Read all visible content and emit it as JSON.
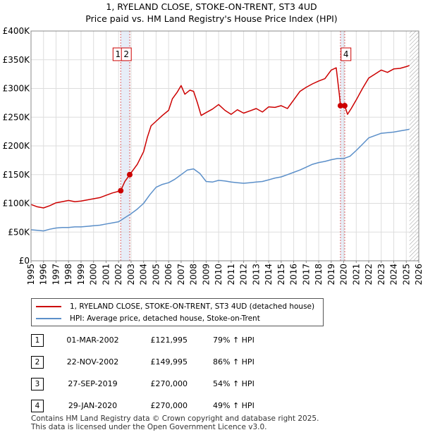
{
  "title": "1, RYELAND CLOSE, STOKE-ON-TRENT, ST3 4UD",
  "subtitle": "Price paid vs. HM Land Registry's House Price Index (HPI)",
  "chart_data": {
    "type": "line",
    "x_range": [
      1995,
      2026
    ],
    "ylim": [
      0,
      400000
    ],
    "y_ticks": [
      0,
      50000,
      100000,
      150000,
      200000,
      250000,
      300000,
      350000,
      400000
    ],
    "y_tick_labels": [
      "£0",
      "£50K",
      "£100K",
      "£150K",
      "£200K",
      "£250K",
      "£300K",
      "£350K",
      "£400K"
    ],
    "x_ticks": [
      1995,
      1996,
      1997,
      1998,
      1999,
      2000,
      2001,
      2002,
      2003,
      2004,
      2005,
      2006,
      2007,
      2008,
      2009,
      2010,
      2011,
      2012,
      2013,
      2014,
      2015,
      2016,
      2017,
      2018,
      2019,
      2020,
      2021,
      2022,
      2023,
      2024,
      2025,
      2026
    ],
    "grid": true,
    "series": [
      {
        "name": "1, RYELAND CLOSE, STOKE-ON-TRENT, ST3 4UD (detached house)",
        "color": "#cc0000",
        "points": [
          [
            1995.0,
            98000
          ],
          [
            1995.5,
            94000
          ],
          [
            1996.0,
            92000
          ],
          [
            1996.5,
            96000
          ],
          [
            1997.0,
            101000
          ],
          [
            1997.5,
            103000
          ],
          [
            1998.0,
            105000
          ],
          [
            1998.5,
            103000
          ],
          [
            1999.0,
            104000
          ],
          [
            1999.5,
            106000
          ],
          [
            2000.0,
            108000
          ],
          [
            2000.5,
            110000
          ],
          [
            2001.0,
            114000
          ],
          [
            2001.5,
            118000
          ],
          [
            2002.17,
            121995
          ],
          [
            2002.5,
            138000
          ],
          [
            2002.89,
            149995
          ],
          [
            2003.5,
            168000
          ],
          [
            2004.0,
            190000
          ],
          [
            2004.3,
            215000
          ],
          [
            2004.6,
            235000
          ],
          [
            2005.0,
            243000
          ],
          [
            2005.5,
            253000
          ],
          [
            2006.0,
            262000
          ],
          [
            2006.3,
            282000
          ],
          [
            2006.7,
            294000
          ],
          [
            2007.0,
            305000
          ],
          [
            2007.3,
            290000
          ],
          [
            2007.7,
            297000
          ],
          [
            2008.0,
            295000
          ],
          [
            2008.3,
            275000
          ],
          [
            2008.6,
            253000
          ],
          [
            2009.0,
            258000
          ],
          [
            2009.5,
            264000
          ],
          [
            2010.0,
            272000
          ],
          [
            2010.5,
            262000
          ],
          [
            2011.0,
            255000
          ],
          [
            2011.5,
            263000
          ],
          [
            2012.0,
            257000
          ],
          [
            2012.5,
            261000
          ],
          [
            2013.0,
            265000
          ],
          [
            2013.5,
            259000
          ],
          [
            2014.0,
            268000
          ],
          [
            2014.5,
            267000
          ],
          [
            2015.0,
            270000
          ],
          [
            2015.5,
            265000
          ],
          [
            2016.0,
            280000
          ],
          [
            2016.5,
            295000
          ],
          [
            2017.0,
            302000
          ],
          [
            2017.5,
            308000
          ],
          [
            2018.0,
            313000
          ],
          [
            2018.5,
            317000
          ],
          [
            2019.0,
            332000
          ],
          [
            2019.4,
            336000
          ],
          [
            2019.65,
            290000
          ],
          [
            2019.74,
            270000
          ],
          [
            2019.9,
            268000
          ],
          [
            2020.08,
            270000
          ],
          [
            2020.3,
            255000
          ],
          [
            2020.6,
            265000
          ],
          [
            2021.0,
            280000
          ],
          [
            2021.5,
            300000
          ],
          [
            2022.0,
            318000
          ],
          [
            2022.5,
            325000
          ],
          [
            2023.0,
            332000
          ],
          [
            2023.5,
            328000
          ],
          [
            2024.0,
            334000
          ],
          [
            2024.5,
            335000
          ],
          [
            2025.0,
            338000
          ],
          [
            2025.25,
            340000
          ]
        ]
      },
      {
        "name": "HPI: Average price, detached house, Stoke-on-Trent",
        "color": "#5b8fc9",
        "points": [
          [
            1995.0,
            54000
          ],
          [
            1995.5,
            53000
          ],
          [
            1996.0,
            52000
          ],
          [
            1996.5,
            55000
          ],
          [
            1997.0,
            57000
          ],
          [
            1997.5,
            58000
          ],
          [
            1998.0,
            58000
          ],
          [
            1998.5,
            59000
          ],
          [
            1999.0,
            59000
          ],
          [
            1999.5,
            60000
          ],
          [
            2000.0,
            61000
          ],
          [
            2000.5,
            62000
          ],
          [
            2001.0,
            64000
          ],
          [
            2001.5,
            66000
          ],
          [
            2002.0,
            68000
          ],
          [
            2002.5,
            75000
          ],
          [
            2003.0,
            82000
          ],
          [
            2003.5,
            90000
          ],
          [
            2004.0,
            100000
          ],
          [
            2004.5,
            115000
          ],
          [
            2005.0,
            128000
          ],
          [
            2005.5,
            133000
          ],
          [
            2006.0,
            136000
          ],
          [
            2006.5,
            142000
          ],
          [
            2007.0,
            150000
          ],
          [
            2007.5,
            158000
          ],
          [
            2008.0,
            160000
          ],
          [
            2008.5,
            152000
          ],
          [
            2009.0,
            138000
          ],
          [
            2009.5,
            137000
          ],
          [
            2010.0,
            140000
          ],
          [
            2010.5,
            139000
          ],
          [
            2011.0,
            137000
          ],
          [
            2011.5,
            136000
          ],
          [
            2012.0,
            135000
          ],
          [
            2012.5,
            136000
          ],
          [
            2013.0,
            137000
          ],
          [
            2013.5,
            138000
          ],
          [
            2014.0,
            141000
          ],
          [
            2014.5,
            144000
          ],
          [
            2015.0,
            146000
          ],
          [
            2015.5,
            150000
          ],
          [
            2016.0,
            154000
          ],
          [
            2016.5,
            158000
          ],
          [
            2017.0,
            163000
          ],
          [
            2017.5,
            168000
          ],
          [
            2018.0,
            171000
          ],
          [
            2018.5,
            173000
          ],
          [
            2019.0,
            176000
          ],
          [
            2019.5,
            178000
          ],
          [
            2020.0,
            178000
          ],
          [
            2020.5,
            182000
          ],
          [
            2021.0,
            192000
          ],
          [
            2021.5,
            203000
          ],
          [
            2022.0,
            214000
          ],
          [
            2022.5,
            218000
          ],
          [
            2023.0,
            222000
          ],
          [
            2023.5,
            223000
          ],
          [
            2024.0,
            224000
          ],
          [
            2024.5,
            226000
          ],
          [
            2025.0,
            228000
          ],
          [
            2025.25,
            229000
          ]
        ]
      }
    ],
    "sales": [
      {
        "id": "1",
        "x": 2002.17,
        "value": 121995
      },
      {
        "id": "2",
        "x": 2002.89,
        "value": 149995
      },
      {
        "id": "3",
        "x": 2019.74,
        "value": 270000
      },
      {
        "id": "4",
        "x": 2020.08,
        "value": 270000
      }
    ],
    "shaded_range": [
      2002.17,
      2002.89
    ],
    "shaded_range_2": [
      2019.74,
      2020.08
    ],
    "future_hatch_from": 2025.25
  },
  "marker_labels": [
    {
      "label": "1",
      "x": 2001.95
    },
    {
      "label": "2",
      "x": 2002.62
    },
    {
      "label": "4",
      "x": 2020.18
    }
  ],
  "legend": [
    {
      "label": "1, RYELAND CLOSE, STOKE-ON-TRENT, ST3 4UD (detached house)",
      "color": "#cc0000"
    },
    {
      "label": "HPI: Average price, detached house, Stoke-on-Trent",
      "color": "#5b8fc9"
    }
  ],
  "transactions": [
    {
      "num": "1",
      "date": "01-MAR-2002",
      "price": "£121,995",
      "hpi": "79% ↑ HPI"
    },
    {
      "num": "2",
      "date": "22-NOV-2002",
      "price": "£149,995",
      "hpi": "86% ↑ HPI"
    },
    {
      "num": "3",
      "date": "27-SEP-2019",
      "price": "£270,000",
      "hpi": "54% ↑ HPI"
    },
    {
      "num": "4",
      "date": "29-JAN-2020",
      "price": "£270,000",
      "hpi": "49% ↑ HPI"
    }
  ],
  "footer": {
    "line1": "Contains HM Land Registry data © Crown copyright and database right 2025.",
    "line2": "This data is licensed under the Open Government Licence v3.0."
  }
}
